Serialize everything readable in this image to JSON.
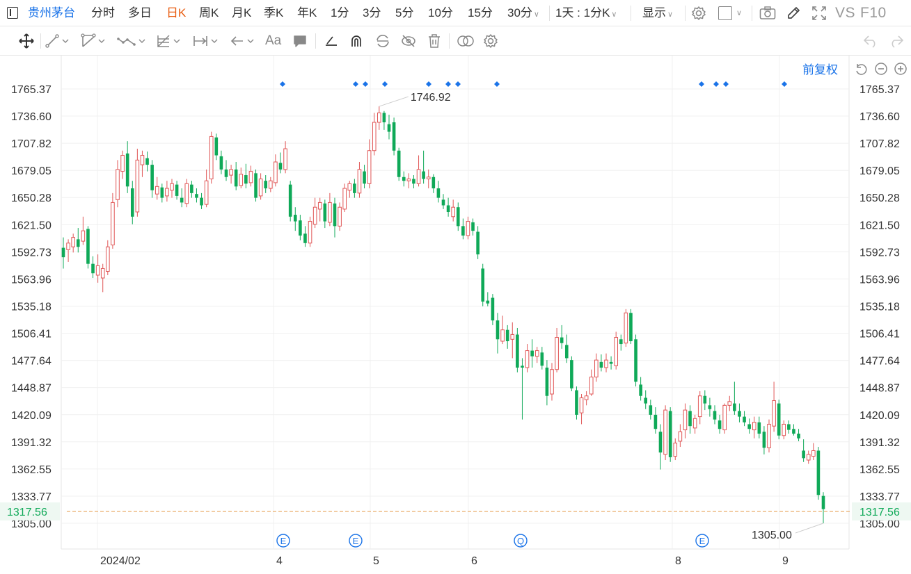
{
  "toolbar": {
    "stock_name": "贵州茅台",
    "periods": [
      "分时",
      "多日",
      "日K",
      "周K",
      "月K",
      "季K",
      "年K",
      "1分",
      "3分",
      "5分",
      "10分",
      "15分",
      "30分"
    ],
    "active_period": "日K",
    "multi_period": "1天 : 1分K",
    "display": "显示",
    "vs": "VS",
    "f10": "F10"
  },
  "drawing_tools": {
    "text_tool": "Aa"
  },
  "chart": {
    "adjust_mode": "前复权",
    "current_price": "1317.56",
    "accent_colors": {
      "up": "#e05555",
      "down": "#0fa958",
      "blue": "#1a73e8",
      "price_line": "#e8a35a"
    }
  },
  "chart_data": {
    "type": "candlestick",
    "y_ticks": [
      "1765.37",
      "1736.60",
      "1707.82",
      "1679.05",
      "1650.28",
      "1621.50",
      "1592.73",
      "1563.96",
      "1535.18",
      "1506.41",
      "1477.64",
      "1448.87",
      "1420.09",
      "1391.32",
      "1362.55",
      "1333.77",
      "1305.00"
    ],
    "ylim": [
      1305.0,
      1765.37
    ],
    "x_ticks": [
      "2024/02",
      "4",
      "5",
      "6",
      "8",
      "9"
    ],
    "max_label": "1746.92",
    "min_label": "1305.00",
    "current_price": "1317.56",
    "event_markers": [
      "E",
      "E",
      "Q",
      "E"
    ],
    "candles": [
      [
        1597,
        1587,
        1608,
        1575
      ],
      [
        1595,
        1602,
        1606,
        1582
      ],
      [
        1598,
        1608,
        1612,
        1592
      ],
      [
        1606,
        1598,
        1618,
        1592
      ],
      [
        1604,
        1615,
        1630,
        1600
      ],
      [
        1617,
        1580,
        1620,
        1575
      ],
      [
        1580,
        1570,
        1588,
        1565
      ],
      [
        1568,
        1578,
        1590,
        1560
      ],
      [
        1565,
        1575,
        1580,
        1550
      ],
      [
        1572,
        1598,
        1605,
        1568
      ],
      [
        1600,
        1645,
        1655,
        1596
      ],
      [
        1648,
        1680,
        1690,
        1640
      ],
      [
        1678,
        1695,
        1700,
        1670
      ],
      [
        1697,
        1662,
        1710,
        1655
      ],
      [
        1660,
        1630,
        1668,
        1622
      ],
      [
        1635,
        1690,
        1702,
        1630
      ],
      [
        1685,
        1695,
        1700,
        1672
      ],
      [
        1692,
        1685,
        1699,
        1678
      ],
      [
        1685,
        1658,
        1690,
        1650
      ],
      [
        1654,
        1662,
        1672,
        1648
      ],
      [
        1661,
        1650,
        1665,
        1645
      ],
      [
        1652,
        1660,
        1668,
        1646
      ],
      [
        1658,
        1665,
        1670,
        1650
      ],
      [
        1664,
        1652,
        1668,
        1648
      ],
      [
        1650,
        1645,
        1660,
        1640
      ],
      [
        1644,
        1665,
        1670,
        1640
      ],
      [
        1664,
        1655,
        1668,
        1650
      ],
      [
        1654,
        1650,
        1660,
        1645
      ],
      [
        1650,
        1642,
        1655,
        1638
      ],
      [
        1643,
        1668,
        1680,
        1640
      ],
      [
        1670,
        1715,
        1720,
        1665
      ],
      [
        1714,
        1695,
        1718,
        1690
      ],
      [
        1694,
        1680,
        1700,
        1675
      ],
      [
        1680,
        1672,
        1690,
        1668
      ],
      [
        1674,
        1680,
        1685,
        1665
      ],
      [
        1680,
        1662,
        1688,
        1658
      ],
      [
        1663,
        1675,
        1682,
        1660
      ],
      [
        1674,
        1665,
        1686,
        1660
      ],
      [
        1666,
        1678,
        1684,
        1662
      ],
      [
        1676,
        1650,
        1680,
        1646
      ],
      [
        1652,
        1670,
        1676,
        1648
      ],
      [
        1668,
        1660,
        1674,
        1655
      ],
      [
        1660,
        1668,
        1672,
        1656
      ],
      [
        1666,
        1688,
        1696,
        1662
      ],
      [
        1687,
        1680,
        1698,
        1676
      ],
      [
        1680,
        1702,
        1710,
        1676
      ],
      [
        1664,
        1630,
        1668,
        1625
      ],
      [
        1632,
        1625,
        1640,
        1615
      ],
      [
        1626,
        1610,
        1632,
        1605
      ],
      [
        1612,
        1602,
        1620,
        1598
      ],
      [
        1602,
        1625,
        1630,
        1598
      ],
      [
        1622,
        1640,
        1650,
        1618
      ],
      [
        1638,
        1645,
        1650,
        1625
      ],
      [
        1644,
        1625,
        1648,
        1618
      ],
      [
        1624,
        1645,
        1655,
        1620
      ],
      [
        1644,
        1620,
        1650,
        1608
      ],
      [
        1620,
        1640,
        1645,
        1615
      ],
      [
        1638,
        1660,
        1665,
        1635
      ],
      [
        1658,
        1665,
        1668,
        1650
      ],
      [
        1665,
        1655,
        1670,
        1650
      ],
      [
        1655,
        1680,
        1688,
        1650
      ],
      [
        1678,
        1665,
        1685,
        1660
      ],
      [
        1665,
        1700,
        1712,
        1660
      ],
      [
        1700,
        1730,
        1740,
        1695
      ],
      [
        1730,
        1740,
        1746.92,
        1722
      ],
      [
        1740,
        1730,
        1742,
        1722
      ],
      [
        1728,
        1720,
        1738,
        1712
      ],
      [
        1730,
        1700,
        1735,
        1695
      ],
      [
        1700,
        1672,
        1703,
        1668
      ],
      [
        1672,
        1668,
        1678,
        1662
      ],
      [
        1668,
        1670,
        1676,
        1660
      ],
      [
        1670,
        1665,
        1674,
        1660
      ],
      [
        1665,
        1680,
        1695,
        1662
      ],
      [
        1678,
        1670,
        1700,
        1665
      ],
      [
        1670,
        1672,
        1680,
        1660
      ],
      [
        1672,
        1660,
        1675,
        1655
      ],
      [
        1660,
        1650,
        1668,
        1645
      ],
      [
        1648,
        1642,
        1654,
        1638
      ],
      [
        1642,
        1635,
        1650,
        1630
      ],
      [
        1630,
        1640,
        1648,
        1625
      ],
      [
        1640,
        1620,
        1645,
        1615
      ],
      [
        1620,
        1610,
        1628,
        1606
      ],
      [
        1610,
        1625,
        1630,
        1606
      ],
      [
        1624,
        1615,
        1628,
        1610
      ],
      [
        1614,
        1590,
        1620,
        1585
      ],
      [
        1575,
        1540,
        1580,
        1535
      ],
      [
        1541,
        1538,
        1550,
        1535
      ],
      [
        1544,
        1520,
        1548,
        1515
      ],
      [
        1520,
        1500,
        1528,
        1485
      ],
      [
        1498,
        1510,
        1525,
        1495
      ],
      [
        1510,
        1498,
        1515,
        1490
      ],
      [
        1500,
        1505,
        1518,
        1480
      ],
      [
        1505,
        1470,
        1512,
        1465
      ],
      [
        1472,
        1470,
        1480,
        1415
      ],
      [
        1470,
        1488,
        1495,
        1465
      ],
      [
        1488,
        1482,
        1500,
        1470
      ],
      [
        1482,
        1488,
        1492,
        1475
      ],
      [
        1486,
        1472,
        1492,
        1468
      ],
      [
        1470,
        1440,
        1478,
        1430
      ],
      [
        1442,
        1468,
        1475,
        1435
      ],
      [
        1468,
        1502,
        1512,
        1465
      ],
      [
        1502,
        1496,
        1515,
        1490
      ],
      [
        1494,
        1480,
        1505,
        1475
      ],
      [
        1478,
        1448,
        1482,
        1445
      ],
      [
        1446,
        1420,
        1450,
        1415
      ],
      [
        1422,
        1438,
        1442,
        1410
      ],
      [
        1436,
        1440,
        1445,
        1430
      ],
      [
        1442,
        1460,
        1468,
        1440
      ],
      [
        1460,
        1478,
        1485,
        1455
      ],
      [
        1476,
        1470,
        1484,
        1466
      ],
      [
        1470,
        1478,
        1485,
        1465
      ],
      [
        1476,
        1474,
        1482,
        1468
      ],
      [
        1472,
        1502,
        1508,
        1468
      ],
      [
        1500,
        1495,
        1505,
        1488
      ],
      [
        1496,
        1528,
        1532,
        1492
      ],
      [
        1528,
        1498,
        1532,
        1495
      ],
      [
        1500,
        1455,
        1505,
        1450
      ],
      [
        1452,
        1440,
        1460,
        1435
      ],
      [
        1438,
        1432,
        1446,
        1426
      ],
      [
        1430,
        1420,
        1436,
        1415
      ],
      [
        1420,
        1405,
        1428,
        1400
      ],
      [
        1402,
        1380,
        1410,
        1362
      ],
      [
        1378,
        1425,
        1430,
        1372
      ],
      [
        1424,
        1375,
        1428,
        1370
      ],
      [
        1376,
        1390,
        1395,
        1372
      ],
      [
        1392,
        1402,
        1410,
        1386
      ],
      [
        1404,
        1425,
        1432,
        1395
      ],
      [
        1424,
        1408,
        1430,
        1400
      ],
      [
        1406,
        1416,
        1420,
        1400
      ],
      [
        1418,
        1440,
        1445,
        1410
      ],
      [
        1440,
        1432,
        1446,
        1425
      ],
      [
        1430,
        1426,
        1438,
        1418
      ],
      [
        1424,
        1415,
        1430,
        1410
      ],
      [
        1414,
        1405,
        1420,
        1400
      ],
      [
        1404,
        1430,
        1432,
        1400
      ],
      [
        1430,
        1434,
        1440,
        1424
      ],
      [
        1432,
        1424,
        1455,
        1420
      ],
      [
        1424,
        1418,
        1432,
        1412
      ],
      [
        1418,
        1412,
        1424,
        1408
      ],
      [
        1410,
        1405,
        1416,
        1400
      ],
      [
        1404,
        1412,
        1418,
        1395
      ],
      [
        1412,
        1400,
        1418,
        1395
      ],
      [
        1402,
        1385,
        1408,
        1378
      ],
      [
        1385,
        1410,
        1415,
        1380
      ],
      [
        1408,
        1435,
        1455,
        1402
      ],
      [
        1432,
        1398,
        1436,
        1394
      ],
      [
        1398,
        1410,
        1414,
        1394
      ],
      [
        1410,
        1404,
        1414,
        1400
      ],
      [
        1405,
        1400,
        1410,
        1398
      ],
      [
        1400,
        1395,
        1405,
        1392
      ],
      [
        1382,
        1374,
        1394,
        1370
      ],
      [
        1372,
        1378,
        1382,
        1368
      ],
      [
        1376,
        1382,
        1390,
        1372
      ],
      [
        1382,
        1335,
        1386,
        1330
      ],
      [
        1334,
        1320,
        1338,
        1305
      ]
    ]
  }
}
